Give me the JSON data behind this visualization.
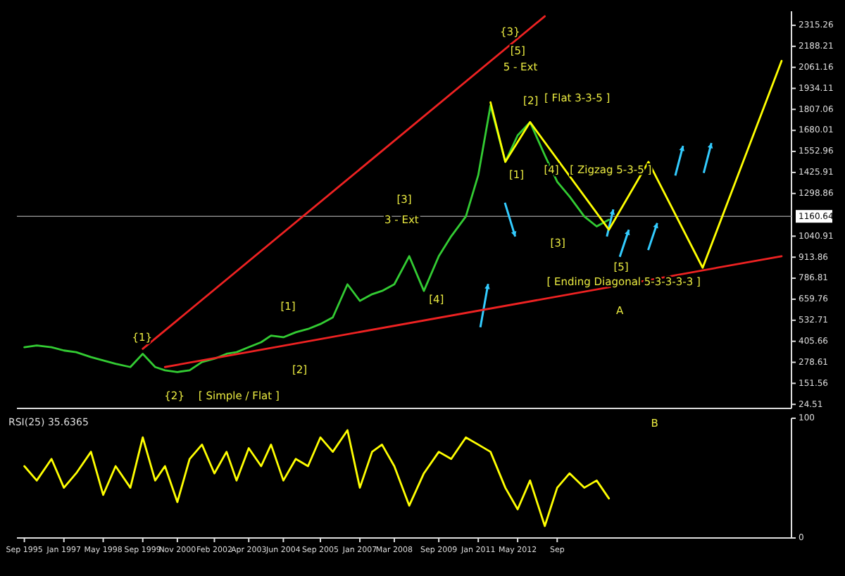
{
  "chart_data": [
    {
      "type": "line",
      "xlim": [
        "1995-06",
        "2021-08"
      ],
      "ylim": [
        0,
        2400
      ],
      "tick_labels": "y",
      "yticks": [
        24.51,
        151.56,
        278.61,
        405.66,
        532.71,
        659.76,
        786.81,
        913.86,
        1040.91,
        1298.86,
        1425.91,
        1552.96,
        1680.01,
        1807.06,
        1934.11,
        2061.16,
        2188.21,
        2315.26
      ],
      "x": [
        "1995-09",
        "1996-02",
        "1996-08",
        "1997-01",
        "1997-06",
        "1997-12",
        "1998-05",
        "1998-10",
        "1999-04",
        "1999-09",
        "2000-02",
        "2000-06",
        "2000-11",
        "2001-04",
        "2001-09",
        "2002-02",
        "2002-07",
        "2002-11",
        "2003-04",
        "2003-09",
        "2004-01",
        "2004-06",
        "2004-11",
        "2005-04",
        "2005-09",
        "2006-02",
        "2006-08",
        "2007-01",
        "2007-06",
        "2007-10",
        "2008-03",
        "2008-09",
        "2009-03",
        "2009-09",
        "2010-02",
        "2010-08",
        "2011-01",
        "2011-06",
        "2011-12",
        "2012-05",
        "2012-10",
        "2013-04",
        "2013-09",
        "2014-02",
        "2014-08",
        "2015-01",
        "2015-06"
      ],
      "series": [
        {
          "color": "#33cc33",
          "values": [
            370,
            380,
            370,
            350,
            340,
            310,
            290,
            270,
            250,
            330,
            250,
            230,
            220,
            230,
            280,
            300,
            330,
            340,
            370,
            400,
            440,
            430,
            460,
            480,
            510,
            550,
            750,
            650,
            690,
            710,
            750,
            920,
            710,
            920,
            1040,
            1160,
            1410,
            1830,
            1490,
            1650,
            1730,
            1530,
            1370,
            1280,
            1160,
            1100,
            1140
          ]
        },
        {
          "color": "#ffff00",
          "x": [
            "2011-06",
            "2011-12",
            "2012-10",
            "2015-06",
            "2016-10",
            "2018-08",
            "2021-04"
          ],
          "values": [
            1850,
            1490,
            1730,
            1080,
            1490,
            850,
            2100
          ]
        },
        {
          "color": "#ee2222",
          "x": [
            "1999-09",
            "2013-04"
          ],
          "values": [
            360,
            2370
          ]
        },
        {
          "color": "#ee2222",
          "x": [
            "2000-06",
            "2021-04"
          ],
          "values": [
            250,
            920
          ]
        }
      ],
      "ref_lines": [
        {
          "axis": "y",
          "value": 1160.64,
          "label": "1160.64",
          "color": "#888888"
        }
      ],
      "annotations": [
        "{1}",
        "{2}",
        "[ Simple / Flat ]",
        "[1]",
        "[2]",
        "3 - Ext",
        "[3]",
        "[4]",
        "5 - Ext",
        "[5]",
        "{3}",
        "[1]",
        "[2]",
        "[ Flat 3-3-5 ]",
        "[4]",
        "[ Zigzag 5-3-5 ]",
        "[3]",
        "[5]",
        "[ Ending Diagonal 5-3-3-3-3 ]",
        "A"
      ]
    },
    {
      "type": "line",
      "title": "RSI(25) 35.6365",
      "xlim": [
        "1995-06",
        "2021-08"
      ],
      "ylim": [
        0,
        100
      ],
      "yticks": [
        0,
        100
      ],
      "xticks": [
        {
          "value": "1995-09",
          "label": "Sep 1995"
        },
        {
          "value": "1997-01",
          "label": "Jan 1997"
        },
        {
          "value": "1998-05",
          "label": "May 1998"
        },
        {
          "value": "1999-09",
          "label": "Sep 1999"
        },
        {
          "value": "2000-11",
          "label": "Nov 2000"
        },
        {
          "value": "2002-02",
          "label": "Feb 2002"
        },
        {
          "value": "2003-04",
          "label": "Apr 2003"
        },
        {
          "value": "2004-06",
          "label": "Jun 2004"
        },
        {
          "value": "2005-09",
          "label": "Sep 2005"
        },
        {
          "value": "2007-01",
          "label": "Jan 2007"
        },
        {
          "value": "2008-03",
          "label": "Mar 2008"
        },
        {
          "value": "2009-09",
          "label": "Sep 2009"
        },
        {
          "value": "2011-01",
          "label": "Jan 2011"
        },
        {
          "value": "2012-05",
          "label": "May 2012"
        },
        {
          "value": "2013-09",
          "label": "Sep"
        }
      ],
      "x": [
        "1995-09",
        "1996-02",
        "1996-08",
        "1997-01",
        "1997-06",
        "1997-12",
        "1998-05",
        "1998-10",
        "1999-04",
        "1999-09",
        "2000-02",
        "2000-06",
        "2000-11",
        "2001-04",
        "2001-09",
        "2002-02",
        "2002-07",
        "2002-11",
        "2003-04",
        "2003-09",
        "2004-01",
        "2004-06",
        "2004-11",
        "2005-04",
        "2005-09",
        "2006-02",
        "2006-08",
        "2007-01",
        "2007-06",
        "2007-10",
        "2008-03",
        "2008-09",
        "2009-03",
        "2009-09",
        "2010-02",
        "2010-08",
        "2011-01",
        "2011-06",
        "2011-12",
        "2012-05",
        "2012-10",
        "2013-04",
        "2013-09",
        "2014-02",
        "2014-08",
        "2015-01",
        "2015-06"
      ],
      "series": [
        {
          "color": "#ffff00",
          "values": [
            60,
            48,
            66,
            42,
            54,
            72,
            36,
            60,
            42,
            84,
            48,
            60,
            30,
            66,
            78,
            54,
            72,
            48,
            75,
            60,
            78,
            48,
            66,
            60,
            84,
            72,
            90,
            42,
            72,
            78,
            60,
            27,
            54,
            72,
            66,
            84,
            78,
            72,
            42,
            24,
            48,
            10,
            42,
            54,
            42,
            48,
            33
          ]
        }
      ],
      "annotations": [
        "B"
      ]
    }
  ]
}
